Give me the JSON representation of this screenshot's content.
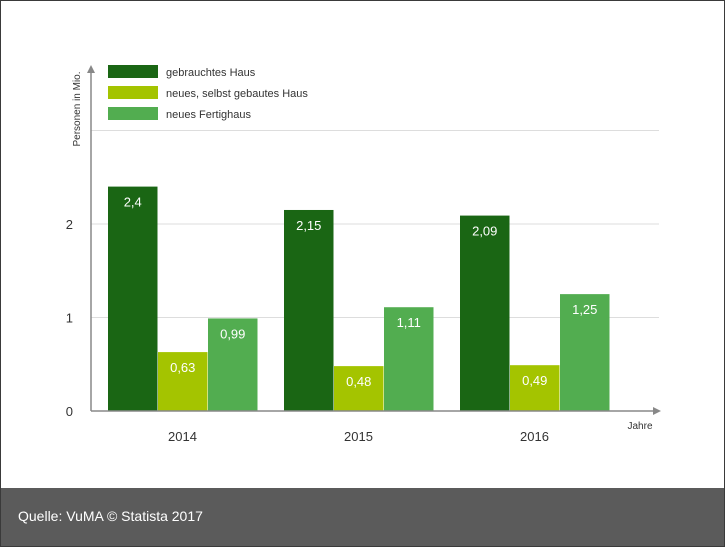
{
  "chart_data": {
    "type": "bar",
    "categories": [
      "2014",
      "2015",
      "2016"
    ],
    "series": [
      {
        "name": "gebrauchtes Haus",
        "values": [
          2.4,
          2.15,
          2.09
        ],
        "labels": [
          "2,4",
          "2,15",
          "2,09"
        ],
        "color": "#1a6614"
      },
      {
        "name": "neues, selbst gebautes Haus",
        "values": [
          0.63,
          0.48,
          0.49
        ],
        "labels": [
          "0,63",
          "0,48",
          "0,49"
        ],
        "color": "#a4c400"
      },
      {
        "name": "neues Fertighaus",
        "values": [
          0.99,
          1.11,
          1.25
        ],
        "labels": [
          "0,99",
          "1,11",
          "1,25"
        ],
        "color": "#52ad50"
      }
    ],
    "ylabel": "Personen in Mio.",
    "xlabel": "Jahre",
    "ylim": [
      0,
      3
    ],
    "yticks": [
      0,
      1,
      2
    ],
    "grid": true,
    "legend_position": "top-left"
  },
  "footer": {
    "source": "Quelle: VuMA © Statista 2017"
  },
  "colors": {
    "footer_bg": "#5b5b5b",
    "axis": "#888888",
    "grid": "#dddddd",
    "label_text": "#ffffff"
  }
}
